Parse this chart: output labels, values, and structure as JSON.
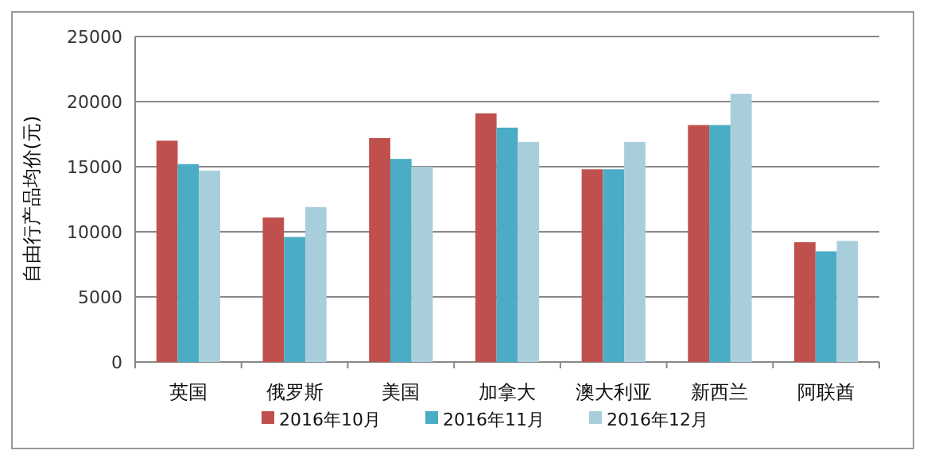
{
  "chart_data": {
    "type": "bar",
    "ylabel": "自由行产品均价(元)",
    "categories": [
      "英国",
      "俄罗斯",
      "美国",
      "加拿大",
      "澳大利亚",
      "新西兰",
      "阿联酋"
    ],
    "series": [
      {
        "name": "2016年10月",
        "color": "#c0504d",
        "values": [
          17000,
          11100,
          17200,
          19100,
          14800,
          18200,
          9200
        ]
      },
      {
        "name": "2016年11月",
        "color": "#4bacc6",
        "values": [
          15200,
          9600,
          15600,
          18000,
          14800,
          18200,
          8500
        ]
      },
      {
        "name": "2016年12月",
        "color": "#a8cedb",
        "values": [
          14700,
          11900,
          15000,
          16900,
          16900,
          20600,
          9300
        ]
      }
    ],
    "ylim": [
      0,
      25000
    ],
    "yticks": [
      0,
      5000,
      10000,
      15000,
      20000,
      25000
    ],
    "grid": "y",
    "legend": "bottom"
  }
}
